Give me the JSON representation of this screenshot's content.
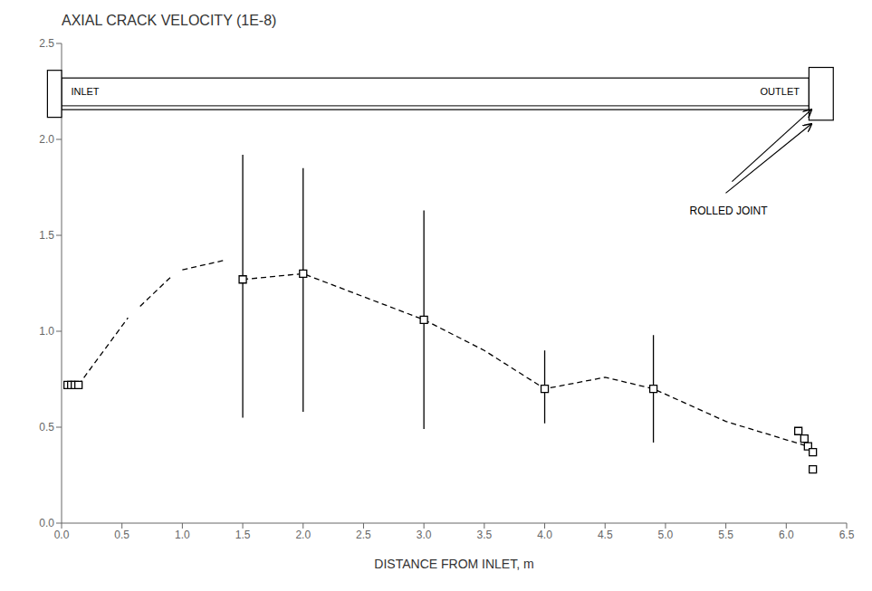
{
  "chart_data": {
    "type": "scatter",
    "title": "AXIAL CRACK VELOCITY (1E-8)",
    "x_label": "DISTANCE FROM INLET, m",
    "xlim": [
      0,
      6.5
    ],
    "ylim": [
      0,
      2.5
    ],
    "xticks": [
      {
        "value": 0,
        "label": "0.0"
      },
      0.5,
      {
        "value": 1.0,
        "label": "1.0"
      },
      1.5,
      {
        "value": 2.0,
        "label": "2.0"
      },
      2.5,
      {
        "value": 3.0,
        "label": "3.0"
      },
      3.5,
      {
        "value": 4.0,
        "label": "4.0"
      },
      4.5,
      {
        "value": 5.0,
        "label": "5.0"
      },
      5.5,
      {
        "value": 6.0,
        "label": "6.0"
      },
      6.5
    ],
    "yticks": [
      {
        "value": 0,
        "label": "0.0"
      },
      0.5,
      {
        "value": 1.0,
        "label": "1.0"
      },
      1.5,
      {
        "value": 2.0,
        "label": "2.0"
      },
      2.5
    ],
    "grid": false,
    "annotations": [
      "INLET",
      "OUTLET",
      "ROLLED JOINT"
    ],
    "series": [
      {
        "type": "scatter",
        "marker": "square",
        "color": "black",
        "x": [
          0.05,
          0.08,
          0.11,
          0.14,
          1.5,
          2.0,
          3.0,
          4.0,
          4.9,
          6.1,
          6.15,
          6.18,
          6.22,
          6.22
        ],
        "values": [
          0.72,
          0.72,
          0.72,
          0.72,
          1.27,
          1.3,
          1.06,
          0.7,
          0.7,
          0.48,
          0.44,
          0.4,
          0.37,
          0.28
        ],
        "error_low": [
          null,
          null,
          null,
          null,
          0.72,
          0.72,
          0.57,
          0.18,
          0.28,
          null,
          null,
          null,
          null,
          null
        ],
        "error_high": [
          null,
          null,
          null,
          null,
          0.65,
          0.55,
          0.57,
          0.2,
          0.28,
          null,
          null,
          null,
          null,
          null
        ]
      },
      {
        "type": "line",
        "line_style": "dashed",
        "color": "black",
        "x": [
          0.14,
          0.55
        ],
        "values": [
          0.72,
          1.07
        ]
      },
      {
        "type": "line",
        "line_style": "dashed",
        "color": "black",
        "x": [
          0.65,
          0.9
        ],
        "values": [
          1.13,
          1.28
        ]
      },
      {
        "type": "line",
        "line_style": "dashed",
        "color": "black",
        "x": [
          1.0,
          1.35
        ],
        "values": [
          1.32,
          1.37
        ]
      },
      {
        "type": "line",
        "line_style": "dashed",
        "color": "black",
        "x": [
          1.5,
          2.0,
          2.5,
          3.0,
          3.5,
          4.0,
          4.5,
          4.9,
          5.5,
          6.18
        ],
        "values": [
          1.27,
          1.3,
          1.18,
          1.06,
          0.9,
          0.7,
          0.76,
          0.7,
          0.53,
          0.4
        ]
      }
    ]
  }
}
